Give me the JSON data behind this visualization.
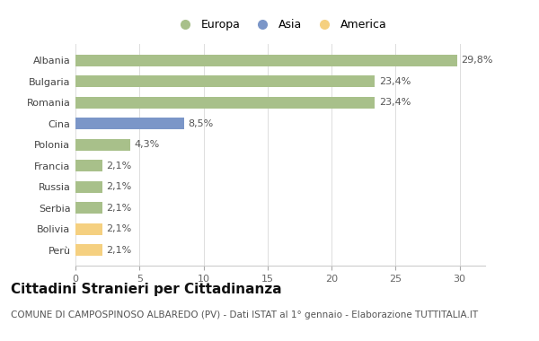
{
  "countries": [
    "Albania",
    "Bulgaria",
    "Romania",
    "Cina",
    "Polonia",
    "Francia",
    "Russia",
    "Serbia",
    "Bolivia",
    "Perù"
  ],
  "values": [
    29.8,
    23.4,
    23.4,
    8.5,
    4.3,
    2.1,
    2.1,
    2.1,
    2.1,
    2.1
  ],
  "labels": [
    "29,8%",
    "23,4%",
    "23,4%",
    "8,5%",
    "4,3%",
    "2,1%",
    "2,1%",
    "2,1%",
    "2,1%",
    "2,1%"
  ],
  "colors": [
    "#adc eighteen",
    "#a8c08a",
    "#a8c08a",
    "#7b96c8",
    "#a8c08a",
    "#a8c08a",
    "#a8c08a",
    "#a8c08a",
    "#f5d080",
    "#f5d080"
  ],
  "bar_colors": [
    "#a8c08a",
    "#a8c08a",
    "#a8c08a",
    "#7b96c8",
    "#a8c08a",
    "#a8c08a",
    "#a8c08a",
    "#a8c08a",
    "#f5d080",
    "#f5d080"
  ],
  "legend_labels": [
    "Europa",
    "Asia",
    "America"
  ],
  "legend_colors": [
    "#a8c08a",
    "#7b96c8",
    "#f5d080"
  ],
  "title": "Cittadini Stranieri per Cittadinanza",
  "subtitle": "COMUNE DI CAMPOSPINOSO ALBAREDO (PV) - Dati ISTAT al 1° gennaio - Elaborazione TUTTITALIA.IT",
  "xlim": [
    0,
    32
  ],
  "xticks": [
    0,
    5,
    10,
    15,
    20,
    25,
    30
  ],
  "background_color": "#ffffff",
  "chart_bg": "#f5f5f5",
  "bar_height": 0.55,
  "title_fontsize": 11,
  "subtitle_fontsize": 7.5,
  "label_fontsize": 8,
  "tick_fontsize": 8,
  "legend_fontsize": 9
}
